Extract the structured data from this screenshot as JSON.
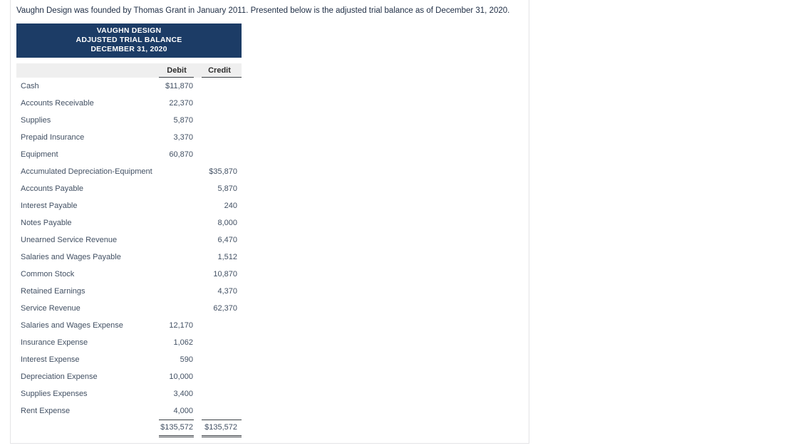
{
  "colors": {
    "header_bg": "#1c3c66",
    "header_text": "#ffffff",
    "body_text": "#425063",
    "intro_text": "#1e2d44",
    "rule": "#3a3f44",
    "column_header_bg": "#efefef",
    "panel_border": "#e4e4e6"
  },
  "intro": "Vaughn Design was founded by Thomas Grant in January 2011. Presented below is the adjusted trial balance as of December 31, 2020.",
  "statement": {
    "title": "VAUGHN DESIGN",
    "subtitle": "ADJUSTED TRIAL BALANCE",
    "date": "DECEMBER 31, 2020",
    "columns": {
      "debit": "Debit",
      "credit": "Credit"
    },
    "rows": [
      {
        "account": "Cash",
        "debit": "$11,870",
        "credit": ""
      },
      {
        "account": "Accounts Receivable",
        "debit": "22,370",
        "credit": ""
      },
      {
        "account": "Supplies",
        "debit": "5,870",
        "credit": ""
      },
      {
        "account": "Prepaid Insurance",
        "debit": "3,370",
        "credit": ""
      },
      {
        "account": "Equipment",
        "debit": "60,870",
        "credit": ""
      },
      {
        "account": "Accumulated Depreciation-Equipment",
        "debit": "",
        "credit": "$35,870"
      },
      {
        "account": "Accounts Payable",
        "debit": "",
        "credit": "5,870"
      },
      {
        "account": "Interest Payable",
        "debit": "",
        "credit": "240"
      },
      {
        "account": "Notes Payable",
        "debit": "",
        "credit": "8,000"
      },
      {
        "account": "Unearned Service Revenue",
        "debit": "",
        "credit": "6,470"
      },
      {
        "account": "Salaries and Wages Payable",
        "debit": "",
        "credit": "1,512"
      },
      {
        "account": "Common Stock",
        "debit": "",
        "credit": "10,870"
      },
      {
        "account": "Retained Earnings",
        "debit": "",
        "credit": "4,370"
      },
      {
        "account": "Service Revenue",
        "debit": "",
        "credit": "62,370"
      },
      {
        "account": "Salaries and Wages Expense",
        "debit": "12,170",
        "credit": ""
      },
      {
        "account": "Insurance Expense",
        "debit": "1,062",
        "credit": ""
      },
      {
        "account": "Interest Expense",
        "debit": "590",
        "credit": ""
      },
      {
        "account": "Depreciation Expense",
        "debit": "10,000",
        "credit": ""
      },
      {
        "account": "Supplies Expenses",
        "debit": "3,400",
        "credit": ""
      },
      {
        "account": "Rent Expense",
        "debit": "4,000",
        "credit": ""
      }
    ],
    "totals": {
      "debit": "$135,572",
      "credit": "$135,572"
    }
  }
}
